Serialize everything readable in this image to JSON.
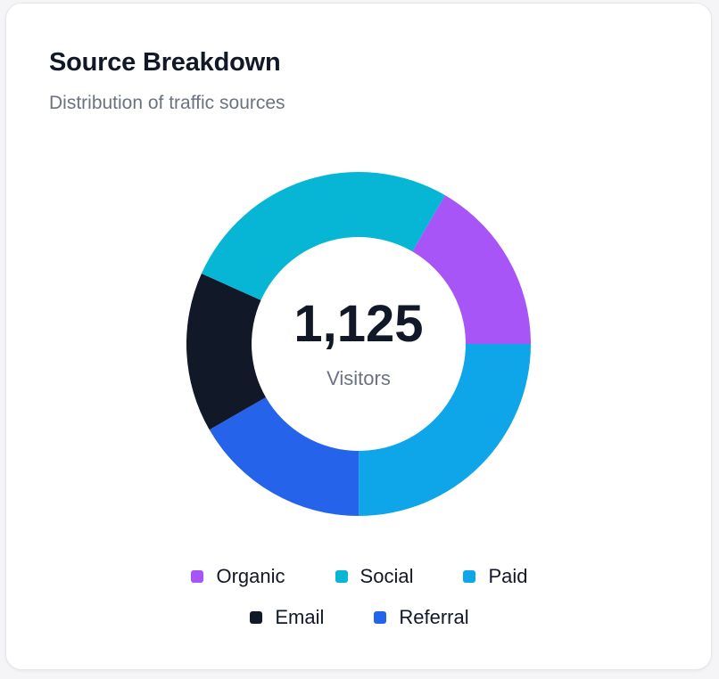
{
  "card": {
    "title": "Source Breakdown",
    "subtitle": "Distribution of traffic sources"
  },
  "center": {
    "value": "1,125",
    "label": "Visitors"
  },
  "chart_data": {
    "type": "pie",
    "variant": "donut",
    "title": "Source Breakdown",
    "subtitle": "Distribution of traffic sources",
    "total": 1125,
    "total_label": "Visitors",
    "categories": [
      "Paid",
      "Referral",
      "Email",
      "Social",
      "Organic"
    ],
    "values": [
      281,
      188,
      169,
      300,
      187
    ],
    "colors": [
      "#0ea5e9",
      "#2563eb",
      "#111827",
      "#06b6d4",
      "#a855f7"
    ],
    "start_angle_deg": 0,
    "direction": "clockwise",
    "legend_position": "bottom",
    "legend": [
      {
        "label": "Organic",
        "color": "#a855f7"
      },
      {
        "label": "Social",
        "color": "#06b6d4"
      },
      {
        "label": "Paid",
        "color": "#0ea5e9"
      },
      {
        "label": "Email",
        "color": "#111827"
      },
      {
        "label": "Referral",
        "color": "#2563eb"
      }
    ]
  }
}
